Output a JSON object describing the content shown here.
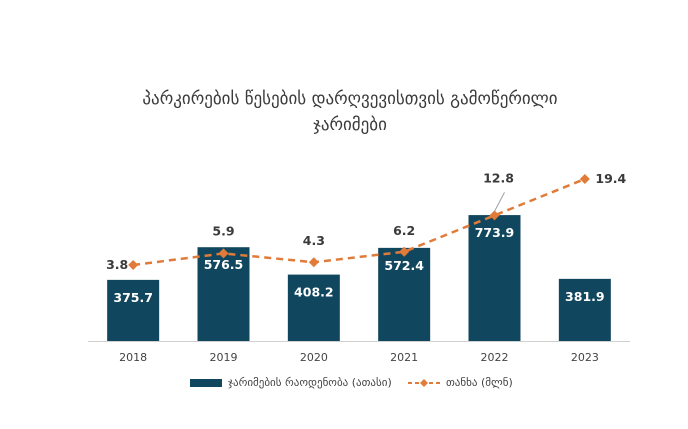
{
  "chart_data": {
    "type": "bar",
    "title_lines": [
      "პარკირების წესების დარღვევისთვის გამოწერილი",
      "ჯარიმები"
    ],
    "categories": [
      "2018",
      "2019",
      "2020",
      "2021",
      "2022",
      "2023"
    ],
    "series": [
      {
        "name": "ჯარიმების რაოდენობა (ათასი)",
        "type": "bar",
        "values": [
          375.7,
          576.5,
          408.2,
          572.4,
          773.9,
          381.9
        ],
        "color": "#11475e",
        "labels": [
          "375.7",
          "576.5",
          "408.2",
          "572.4",
          "773.9",
          "381.9"
        ]
      },
      {
        "name": "თანხა (მლნ)",
        "type": "line",
        "style": "dashed",
        "marker": "diamond",
        "values": [
          3.8,
          5.9,
          4.3,
          6.2,
          12.8,
          19.4
        ],
        "color": "#e07b39",
        "labels": [
          "3.8",
          "5.9",
          "4.3",
          "6.2",
          "12.8",
          "19.4"
        ]
      }
    ],
    "legend_position": "bottom",
    "grid": false
  }
}
